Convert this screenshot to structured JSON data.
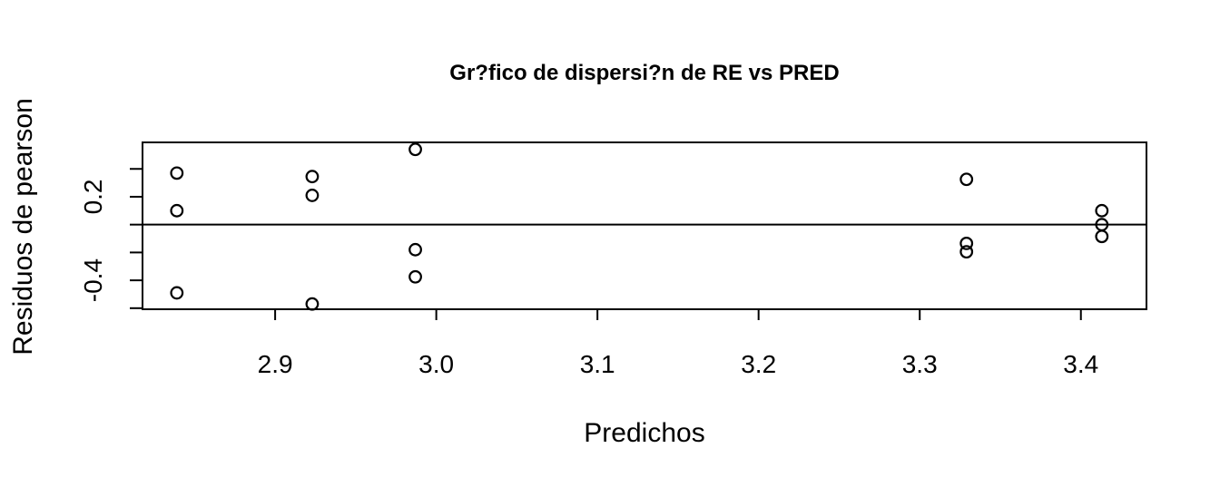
{
  "chart_data": {
    "type": "scatter",
    "title": "Gr?fico de dispersi?n de RE vs PRED",
    "xlabel": "Predichos",
    "ylabel": "Residuos de pearson",
    "xlim": [
      2.8177,
      3.4407
    ],
    "ylim": [
      -0.6077,
      0.5904
    ],
    "x_ticks": [
      2.9,
      3.0,
      3.1,
      3.2,
      3.3,
      3.4
    ],
    "x_tick_labels": [
      "2.9",
      "3.0",
      "3.1",
      "3.2",
      "3.3",
      "3.4"
    ],
    "y_ticks": [
      -0.6,
      -0.4,
      -0.2,
      0.0,
      0.2,
      0.4
    ],
    "y_tick_labels": {
      "-0.4": "-0.4",
      "0.2": "0.2"
    },
    "reference_line_y": 0.0,
    "points": [
      {
        "x": 2.839,
        "y": 0.37
      },
      {
        "x": 2.839,
        "y": 0.1
      },
      {
        "x": 2.839,
        "y": -0.49
      },
      {
        "x": 2.923,
        "y": 0.345
      },
      {
        "x": 2.923,
        "y": 0.21
      },
      {
        "x": 2.923,
        "y": -0.57
      },
      {
        "x": 2.987,
        "y": 0.54
      },
      {
        "x": 2.987,
        "y": -0.18
      },
      {
        "x": 2.987,
        "y": -0.375
      },
      {
        "x": 3.329,
        "y": 0.325
      },
      {
        "x": 3.329,
        "y": -0.135
      },
      {
        "x": 3.329,
        "y": -0.195
      },
      {
        "x": 3.413,
        "y": 0.1
      },
      {
        "x": 3.413,
        "y": 0.0
      },
      {
        "x": 3.413,
        "y": -0.085
      }
    ]
  }
}
